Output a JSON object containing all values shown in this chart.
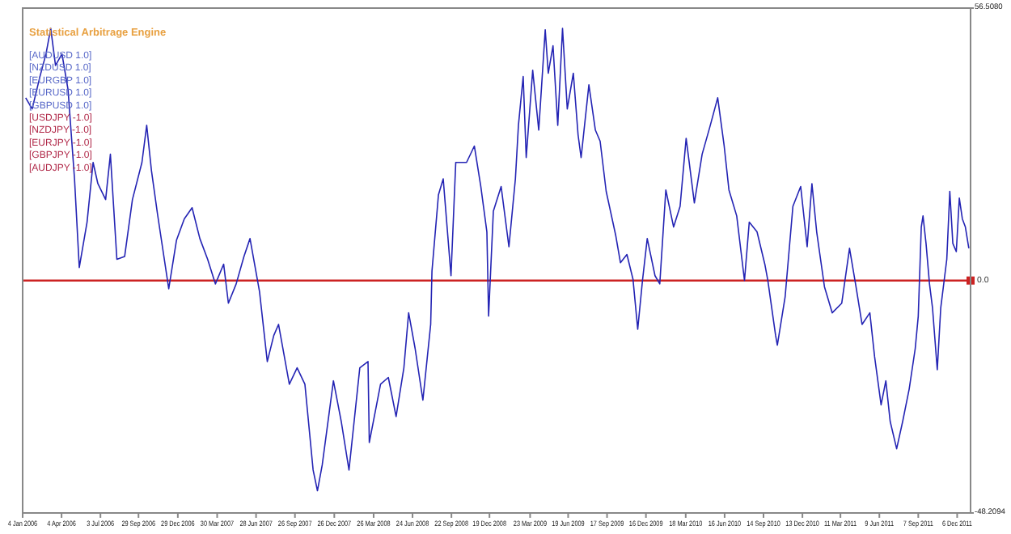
{
  "chart_data": {
    "type": "line",
    "title": "Statistical Arbitrage Engine",
    "annotations": [
      "[AUDUSD 1.0]",
      "[NZDUSD 1.0]",
      "[EURGBP 1.0]",
      "[EURUSD 1.0]",
      "[GBPUSD 1.0]",
      "[USDJPY -1.0]",
      "[NZDJPY -1.0]",
      "[EURJPY -1.0]",
      "[GBPJPY -1.0]",
      "[AUDJPY -1.0]"
    ],
    "xlim": [
      "2006-01-04",
      "2012-01-06"
    ],
    "xticks": [
      {
        "value": "2006-01-04",
        "label": "4 Jan 2006"
      },
      {
        "value": "2006-04-04",
        "label": "4 Apr 2006"
      },
      {
        "value": "2006-07-03",
        "label": "3 Jul 2006"
      },
      {
        "value": "2006-09-29",
        "label": "29 Sep 2006"
      },
      {
        "value": "2006-12-29",
        "label": "29 Dec 2006"
      },
      {
        "value": "2007-03-30",
        "label": "30 Mar 2007"
      },
      {
        "value": "2007-06-28",
        "label": "28 Jun 2007"
      },
      {
        "value": "2007-09-26",
        "label": "26 Sep 2007"
      },
      {
        "value": "2007-12-26",
        "label": "26 Dec 2007"
      },
      {
        "value": "2008-03-26",
        "label": "26 Mar 2008"
      },
      {
        "value": "2008-06-24",
        "label": "24 Jun 2008"
      },
      {
        "value": "2008-09-22",
        "label": "22 Sep 2008"
      },
      {
        "value": "2008-12-19",
        "label": "19 Dec 2008"
      },
      {
        "value": "2009-03-23",
        "label": "23 Mar 2009"
      },
      {
        "value": "2009-06-19",
        "label": "19 Jun 2009"
      },
      {
        "value": "2009-09-17",
        "label": "17 Sep 2009"
      },
      {
        "value": "2009-12-16",
        "label": "16 Dec 2009"
      },
      {
        "value": "2010-03-18",
        "label": "18 Mar 2010"
      },
      {
        "value": "2010-06-16",
        "label": "16 Jun 2010"
      },
      {
        "value": "2010-09-14",
        "label": "14 Sep 2010"
      },
      {
        "value": "2010-12-13",
        "label": "13 Dec 2010"
      },
      {
        "value": "2011-03-11",
        "label": "11 Mar 2011"
      },
      {
        "value": "2011-06-09",
        "label": "9 Jun 2011"
      },
      {
        "value": "2011-09-07",
        "label": "7 Sep 2011"
      },
      {
        "value": "2011-12-06",
        "label": "6 Dec 2011"
      }
    ],
    "ylim": [
      -48.2094,
      56.508
    ],
    "yticks": [
      {
        "value": -48.2094,
        "label": "-48.2094"
      },
      {
        "value": 56.508,
        "label": "56.5080"
      }
    ],
    "grid": false,
    "ref_lines": [
      {
        "axis": "y",
        "value": 0,
        "label": "0.0",
        "color": "#cc2222"
      }
    ],
    "x": [
      "2006-01-11",
      "2006-01-26",
      "2006-02-13",
      "2006-02-27",
      "2006-03-10",
      "2006-03-21",
      "2006-04-05",
      "2006-04-19",
      "2006-05-04",
      "2006-05-15",
      "2006-06-02",
      "2006-06-16",
      "2006-06-27",
      "2006-07-15",
      "2006-07-26",
      "2006-08-10",
      "2006-08-28",
      "2006-09-15",
      "2006-10-07",
      "2006-10-18",
      "2006-10-29",
      "2006-11-12",
      "2006-12-08",
      "2006-12-26",
      "2007-01-13",
      "2007-01-31",
      "2007-02-18",
      "2007-03-08",
      "2007-03-26",
      "2007-04-14",
      "2007-04-25",
      "2007-05-13",
      "2007-05-31",
      "2007-06-14",
      "2007-07-06",
      "2007-07-24",
      "2007-08-08",
      "2007-08-19",
      "2007-09-13",
      "2007-10-01",
      "2007-10-19",
      "2007-11-07",
      "2007-11-17",
      "2007-11-28",
      "2007-12-24",
      "2008-01-11",
      "2008-01-29",
      "2008-02-23",
      "2008-03-13",
      "2008-03-16",
      "2008-04-11",
      "2008-04-29",
      "2008-05-17",
      "2008-06-04",
      "2008-06-15",
      "2008-06-30",
      "2008-07-18",
      "2008-08-05",
      "2008-08-08",
      "2008-08-23",
      "2008-09-03",
      "2008-09-21",
      "2008-10-02",
      "2008-10-27",
      "2008-11-14",
      "2008-11-29",
      "2008-12-13",
      "2008-12-17",
      "2008-12-28",
      "2009-01-15",
      "2009-02-02",
      "2009-02-17",
      "2009-02-24",
      "2009-03-07",
      "2009-03-14",
      "2009-03-29",
      "2009-04-12",
      "2009-04-27",
      "2009-05-04",
      "2009-05-15",
      "2009-05-26",
      "2009-06-06",
      "2009-06-17",
      "2009-07-01",
      "2009-07-12",
      "2009-07-19",
      "2009-08-06",
      "2009-08-21",
      "2009-09-01",
      "2009-09-15",
      "2009-10-07",
      "2009-10-18",
      "2009-11-02",
      "2009-11-16",
      "2009-11-27",
      "2009-12-08",
      "2009-12-19",
      "2010-01-06",
      "2010-01-17",
      "2010-01-31",
      "2010-02-18",
      "2010-03-05",
      "2010-03-19",
      "2010-04-07",
      "2010-04-25",
      "2010-05-13",
      "2010-05-31",
      "2010-06-15",
      "2010-06-26",
      "2010-07-14",
      "2010-08-01",
      "2010-08-12",
      "2010-08-30",
      "2010-09-17",
      "2010-09-24",
      "2010-10-12",
      "2010-10-16",
      "2010-11-03",
      "2010-11-21",
      "2010-12-09",
      "2010-12-24",
      "2011-01-04",
      "2011-01-15",
      "2011-02-02",
      "2011-02-20",
      "2011-03-14",
      "2011-04-01",
      "2011-04-16",
      "2011-04-30",
      "2011-05-18",
      "2011-05-29",
      "2011-06-13",
      "2011-06-24",
      "2011-07-04",
      "2011-07-19",
      "2011-08-02",
      "2011-08-17",
      "2011-08-31",
      "2011-09-07",
      "2011-09-14",
      "2011-09-18",
      "2011-09-25",
      "2011-10-03",
      "2011-10-10",
      "2011-10-21",
      "2011-10-29",
      "2011-11-12",
      "2011-11-19",
      "2011-11-26",
      "2011-12-04",
      "2011-12-11",
      "2011-12-18",
      "2011-12-25",
      "2012-01-02"
    ],
    "series": [
      {
        "color": "#2424b4",
        "values": [
          37.9,
          35.6,
          42.3,
          47.0,
          52.3,
          44.6,
          47.0,
          39.6,
          21.1,
          2.7,
          12.1,
          24.5,
          20.1,
          16.8,
          26.2,
          4.4,
          5.0,
          16.8,
          24.5,
          32.2,
          22.8,
          13.8,
          -1.7,
          8.4,
          12.8,
          15.1,
          8.7,
          4.4,
          -0.7,
          3.4,
          -4.7,
          -0.7,
          5.0,
          8.7,
          -2.3,
          -16.8,
          -11.4,
          -9.1,
          -21.5,
          -18.1,
          -21.5,
          -39.3,
          -43.6,
          -38.3,
          -20.8,
          -29.2,
          -39.3,
          -18.1,
          -16.8,
          -33.6,
          -21.5,
          -20.1,
          -28.2,
          -18.1,
          -6.7,
          -14.1,
          -24.8,
          -9.1,
          2.0,
          17.8,
          21.1,
          1.0,
          24.5,
          24.5,
          27.9,
          19.5,
          10.1,
          -7.4,
          14.4,
          19.5,
          7.0,
          21.1,
          32.2,
          42.3,
          25.5,
          43.6,
          31.2,
          52.0,
          43.0,
          48.7,
          32.2,
          52.3,
          35.6,
          43.0,
          30.2,
          25.5,
          40.6,
          31.2,
          28.9,
          18.5,
          9.4,
          3.7,
          5.4,
          0.3,
          -10.1,
          0.0,
          8.7,
          1.0,
          -0.7,
          18.8,
          11.1,
          15.4,
          29.5,
          16.1,
          26.2,
          31.9,
          37.9,
          27.9,
          18.8,
          13.4,
          0.0,
          12.1,
          10.1,
          3.4,
          0.0,
          -11.4,
          -13.4,
          -3.4,
          15.4,
          19.5,
          7.0,
          20.1,
          10.1,
          -1.3,
          -6.7,
          -4.7,
          6.7,
          -1.3,
          -9.1,
          -6.7,
          -15.8,
          -25.8,
          -20.8,
          -29.2,
          -34.9,
          -29.2,
          -22.5,
          -14.1,
          -7.4,
          11.1,
          13.4,
          7.7,
          -0.7,
          -5.7,
          -18.5,
          -5.7,
          4.4,
          18.5,
          7.7,
          6.0,
          17.1,
          12.8,
          11.1,
          6.7
        ]
      }
    ]
  }
}
